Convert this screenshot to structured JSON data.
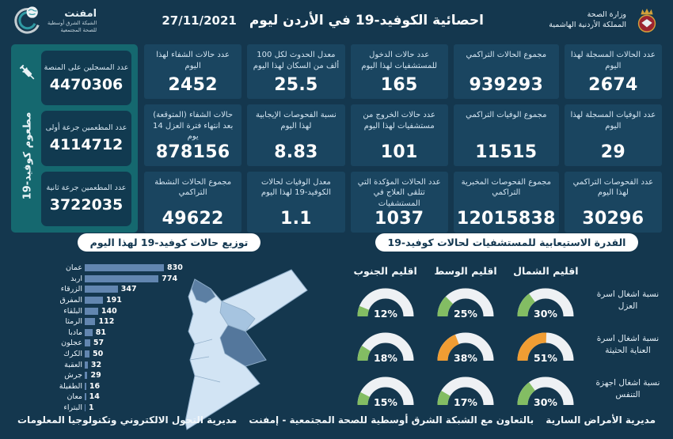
{
  "theme": {
    "background": "#14374e",
    "card_bg": "#1a4560",
    "teal_panel": "#15686f",
    "bar_color": "#6286b0",
    "gauge_green": "#83bd63",
    "gauge_orange": "#f09d33",
    "gauge_track": "#eef1f4",
    "map_light": "#d2e4f4",
    "map_medium": "#a6c4e0",
    "map_dark": "#54779c"
  },
  "header": {
    "title": "احصائية الكوفيد-19 في الأردن ليوم",
    "date": "27/11/2021",
    "ministry_name": "وزارة الصحة",
    "ministry_country": "المملكة الأردنية الهاشمية",
    "emphnet_name": "امفنت",
    "emphnet_sub1": "الشبكة الشرق أوسطية",
    "emphnet_sub2": "للصحة المجتمعية"
  },
  "stats_columns": [
    [
      {
        "label": "عدد الحالات المسجلة لهذا اليوم",
        "value": "2674"
      },
      {
        "label": "عدد الوفيات المسجلة لهذا اليوم",
        "value": "29"
      },
      {
        "label": "عدد الفحوصات التراكمي لهذا اليوم",
        "value": "30296"
      }
    ],
    [
      {
        "label": "مجموع الحالات التراكمي",
        "value": "939293"
      },
      {
        "label": "مجموع الوفيات التراكمي",
        "value": "11515"
      },
      {
        "label": "مجموع الفحوصات المخبرية التراكمي",
        "value": "12015838"
      }
    ],
    [
      {
        "label": "عدد حالات الدخول للمستشفيات لهذا اليوم",
        "value": "165"
      },
      {
        "label": "عدد حالات الخروج من مستشفيات لهذا اليوم",
        "value": "101"
      },
      {
        "label": "عدد الحالات المؤكدة التي تتلقى العلاج في المستشفيات",
        "value": "1037"
      }
    ],
    [
      {
        "label": "معدل الحدوث لكل 100 ألف من السكان لهذا اليوم",
        "value": "25.5"
      },
      {
        "label": "نسبة الفحوصات الإيجابية لهذا اليوم",
        "value": "8.83"
      },
      {
        "label": "معدل الوفيات لحالات الكوفيد-19 لهذا اليوم",
        "value": "1.1"
      }
    ],
    [
      {
        "label": "عدد حالات الشفاء لهذا اليوم",
        "value": "2452"
      },
      {
        "label": "حالات الشفاء (المتوقعة) بعد انتهاء فترة العزل 14 يوم",
        "value": "878156"
      },
      {
        "label": "مجموع الحالات النشطة التراكمي",
        "value": "49622"
      }
    ]
  ],
  "vaccination": {
    "vertical_label": "مطعوم كوفيد-19",
    "cards": [
      {
        "label": "عدد المسجلين على المنصة",
        "value": "4470306"
      },
      {
        "label": "عدد المطعمين جرعة أولى",
        "value": "4114712"
      },
      {
        "label": "عدد المطعمين جرعة ثانية",
        "value": "3722035"
      }
    ]
  },
  "chart_data": [
    {
      "type": "bar",
      "orientation": "horizontal",
      "title": "توزيع حالات كوفيد-19 لهذا اليوم",
      "categories": [
        "عمان",
        "اربد",
        "الزرقاء",
        "المفرق",
        "البلقاء",
        "الرمثا",
        "مادبا",
        "عجلون",
        "الكرك",
        "العقبة",
        "جرش",
        "الطفيلة",
        "معان",
        "البتراء"
      ],
      "values": [
        830,
        774,
        347,
        191,
        140,
        112,
        81,
        57,
        50,
        32,
        29,
        16,
        14,
        1
      ],
      "xlim": [
        0,
        830
      ],
      "bar_color": "#6286b0"
    },
    {
      "type": "gauge",
      "title": "القدرة الاستيعابية للمستشفيات لحالات كوفيد-19",
      "columns": [
        "اقليم الشمال",
        "اقليم الوسط",
        "اقليم الجنوب"
      ],
      "rows": [
        {
          "label": "نسبة اشغال اسرة العزل",
          "values": [
            30,
            25,
            12
          ],
          "colors": [
            "#83bd63",
            "#83bd63",
            "#83bd63"
          ]
        },
        {
          "label": "نسبة اشغال اسرة العناية الحثيثة",
          "values": [
            51,
            38,
            18
          ],
          "colors": [
            "#f09d33",
            "#f09d33",
            "#83bd63"
          ]
        },
        {
          "label": "نسبة اشغال اجهزة التنفس",
          "values": [
            30,
            17,
            15
          ],
          "colors": [
            "#83bd63",
            "#83bd63",
            "#83bd63"
          ]
        }
      ],
      "unit": "%"
    }
  ],
  "footer": {
    "right": "مديرية الأمراض السارية",
    "center": "بالتعاون مع الشبكة الشرق أوسطية للصحة المجتمعية - إمفنت",
    "left": "مديرية التحول الالكتروني وتكنولوجيا المعلومات"
  }
}
